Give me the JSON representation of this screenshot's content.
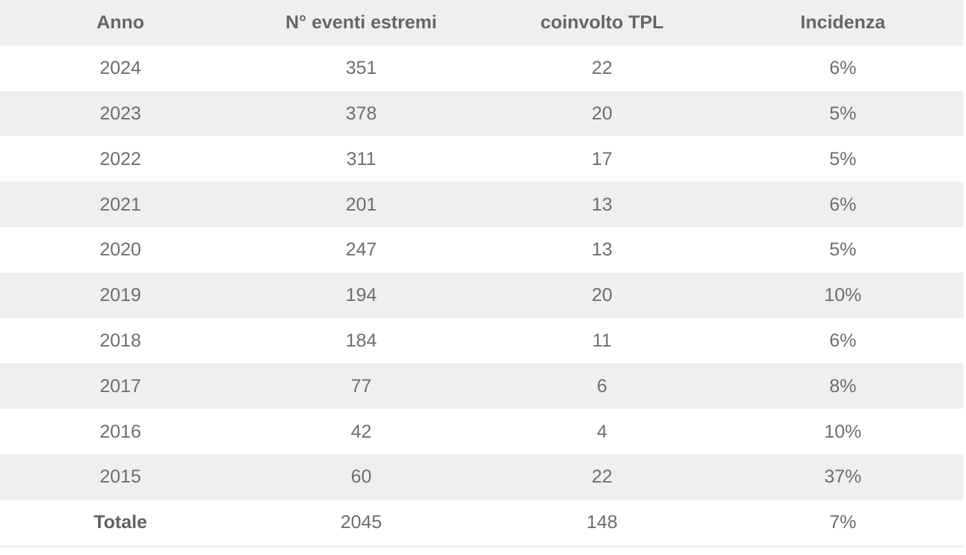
{
  "chart_data": {
    "type": "table",
    "title": "",
    "columns": [
      "Anno",
      "N° eventi estremi",
      "coinvolto TPL",
      "Incidenza"
    ],
    "rows": [
      [
        "2024",
        "351",
        "22",
        "6%"
      ],
      [
        "2023",
        "378",
        "20",
        "5%"
      ],
      [
        "2022",
        "311",
        "17",
        "5%"
      ],
      [
        "2021",
        "201",
        "13",
        "6%"
      ],
      [
        "2020",
        "247",
        "13",
        "5%"
      ],
      [
        "2019",
        "194",
        "20",
        "10%"
      ],
      [
        "2018",
        "184",
        "11",
        "6%"
      ],
      [
        "2017",
        "77",
        "6",
        "8%"
      ],
      [
        "2016",
        "42",
        "4",
        "10%"
      ],
      [
        "2015",
        "60",
        "22",
        "37%"
      ]
    ],
    "total_row": [
      "Totale",
      "2045",
      "148",
      "7%"
    ],
    "layout_hints": {
      "striped": true,
      "stripe_color": "#efefef",
      "header_background": "#efefef",
      "text_color": "#6e6e6e",
      "alignment": "center"
    }
  }
}
